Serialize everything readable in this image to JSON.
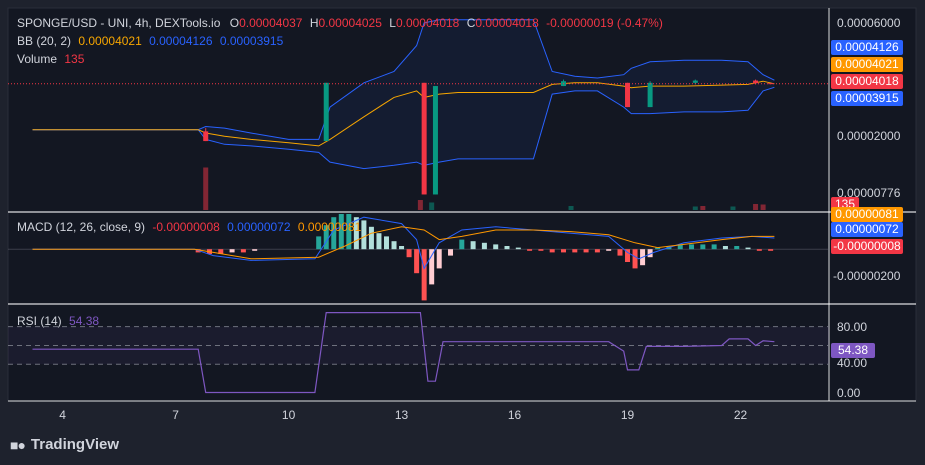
{
  "header": {
    "symbol": "SPONGE/USD - UNI, 4h, DEXTools.io",
    "o_label": "O",
    "o_value": "0.00004037",
    "h_label": "H",
    "h_value": "0.00004025",
    "l_label": "L",
    "l_value": "0.00004018",
    "c_label": "C",
    "c_value": "0.00004018",
    "change": "-0.00000019 (-0.47%)"
  },
  "bb_legend": {
    "label": "BB (20, 2)",
    "basis": "0.00004021",
    "upper": "0.00004126",
    "lower": "0.00003915"
  },
  "volume_legend": {
    "label": "Volume",
    "value": "135"
  },
  "macd_legend": {
    "label": "MACD (12, 26, close, 9)",
    "hist": "-0.00000008",
    "macd": "0.00000072",
    "signal": "0.00000081"
  },
  "rsi_legend": {
    "label": "RSI (14)",
    "value": "54.38"
  },
  "price_axis": {
    "ticks": [
      "0.00006000",
      "0.00002000",
      "0.00000776"
    ],
    "tags": [
      {
        "value": "0.00004126",
        "color": "#2962ff"
      },
      {
        "value": "0.00004021",
        "color": "#ff9800"
      },
      {
        "value": "0.00004018",
        "color": "#f23645"
      },
      {
        "value": "0.00003915",
        "color": "#2962ff"
      }
    ],
    "volume_tag": "135"
  },
  "macd_axis": {
    "ticks": [
      "-0.00000200"
    ],
    "tags": [
      {
        "value": "0.00000081",
        "color": "#ff9800"
      },
      {
        "value": "0.00000072",
        "color": "#2962ff"
      },
      {
        "value": "-0.00000008",
        "color": "#f23645"
      }
    ]
  },
  "rsi_axis": {
    "ticks": [
      "80.00",
      "40.00",
      "0.00"
    ],
    "tag": "54.38"
  },
  "time_axis": {
    "ticks": [
      "4",
      "7",
      "10",
      "13",
      "16",
      "19",
      "22"
    ]
  },
  "footer": {
    "brand": "TradingView"
  },
  "colors": {
    "up": "#089981",
    "down": "#f23645",
    "bb": "#2962ff",
    "basis": "#f7a600",
    "rsi": "#7e57c2",
    "macd": "#2962ff",
    "signal": "#ff9800"
  },
  "chart_data": [
    {
      "type": "candlestick",
      "title": "SPONGE/USD - UNI, 4h, DEXTools.io",
      "x_ticks": [
        "4",
        "7",
        "10",
        "13",
        "16",
        "19",
        "22"
      ],
      "ylim": [
        1.2e-06,
        6.3e-05
      ],
      "candles": [
        {
          "x": 7.8,
          "o": 2.55e-05,
          "h": 2.65e-05,
          "l": 2.25e-05,
          "c": 2.25e-05
        },
        {
          "x": 11.0,
          "o": 2.25e-05,
          "h": 4.05e-05,
          "l": 2.25e-05,
          "c": 4.05e-05
        },
        {
          "x": 13.6,
          "o": 4.05e-05,
          "h": 4.05e-05,
          "l": 6e-06,
          "c": 6e-06
        },
        {
          "x": 13.9,
          "o": 6e-06,
          "h": 3.95e-05,
          "l": 6e-06,
          "c": 3.95e-05
        },
        {
          "x": 17.3,
          "o": 3.95e-05,
          "h": 4.15e-05,
          "l": 3.95e-05,
          "c": 4.1e-05
        },
        {
          "x": 19.0,
          "o": 4.05e-05,
          "h": 4.05e-05,
          "l": 3.3e-05,
          "c": 3.3e-05
        },
        {
          "x": 19.6,
          "o": 3.3e-05,
          "h": 4.1e-05,
          "l": 3.3e-05,
          "c": 4.05e-05
        },
        {
          "x": 20.8,
          "o": 4.05e-05,
          "h": 4.15e-05,
          "l": 4e-05,
          "c": 4.12e-05
        },
        {
          "x": 22.4,
          "o": 4.12e-05,
          "h": 4.15e-05,
          "l": 4e-05,
          "c": 4.04e-05
        },
        {
          "x": 22.8,
          "o": 4.04e-05,
          "h": 4.04e-05,
          "l": 4.02e-05,
          "c": 4.02e-05
        }
      ],
      "bollinger": {
        "name": "BB (20, 2)",
        "x": [
          3.2,
          7.6,
          7.8,
          8.3,
          9.0,
          10.0,
          10.8,
          11.1,
          12.0,
          12.8,
          13.4,
          13.6,
          14.0,
          14.5,
          15.5,
          16.5,
          17.0,
          17.6,
          18.2,
          18.9,
          19.1,
          19.6,
          20.5,
          21.5,
          22.2,
          22.6,
          22.9
        ],
        "upper": [
          2.6e-05,
          2.6e-05,
          2.7e-05,
          2.65e-05,
          2.5e-05,
          2.3e-05,
          2.3e-05,
          3.3e-05,
          4.05e-05,
          4.4e-05,
          5.2e-05,
          5.9e-05,
          6e-05,
          6e-05,
          6e-05,
          6e-05,
          4.4e-05,
          4.25e-05,
          4.2e-05,
          4.3e-05,
          4.5e-05,
          4.7e-05,
          4.75e-05,
          4.75e-05,
          4.7e-05,
          4.3e-05,
          4.13e-05
        ],
        "basis": [
          2.6e-05,
          2.6e-05,
          2.5e-05,
          2.4e-05,
          2.3e-05,
          2.2e-05,
          2.1e-05,
          2.3e-05,
          3e-05,
          3.6e-05,
          3.8e-05,
          3.6e-05,
          3.7e-05,
          3.75e-05,
          3.75e-05,
          3.75e-05,
          4e-05,
          4.05e-05,
          4.05e-05,
          3.95e-05,
          3.9e-05,
          3.95e-05,
          3.95e-05,
          3.98e-05,
          4e-05,
          4.1e-05,
          4.02e-05
        ],
        "lower": [
          2.6e-05,
          2.6e-05,
          2.3e-05,
          2.15e-05,
          2.1e-05,
          2e-05,
          1.9e-05,
          1.6e-05,
          1.4e-05,
          1.5e-05,
          1.6e-05,
          1.5e-05,
          1.6e-05,
          1.7e-05,
          1.7e-05,
          1.7e-05,
          3.7e-05,
          3.8e-05,
          3.8e-05,
          3.3e-05,
          3.1e-05,
          3.1e-05,
          3.15e-05,
          3.15e-05,
          3.2e-05,
          3.8e-05,
          3.91e-05
        ]
      },
      "volume": [
        {
          "x": 7.8,
          "v": 0.85,
          "dir": "down"
        },
        {
          "x": 13.5,
          "v": 0.2,
          "dir": "down"
        },
        {
          "x": 13.8,
          "v": 0.15,
          "dir": "up"
        },
        {
          "x": 17.5,
          "v": 0.08,
          "dir": "up"
        },
        {
          "x": 20.8,
          "v": 0.07,
          "dir": "up"
        },
        {
          "x": 21.0,
          "v": 0.08,
          "dir": "down"
        },
        {
          "x": 21.8,
          "v": 0.07,
          "dir": "up"
        },
        {
          "x": 22.4,
          "v": 0.12,
          "dir": "down"
        },
        {
          "x": 22.6,
          "v": 0.11,
          "dir": "down"
        }
      ]
    },
    {
      "type": "bar",
      "title": "MACD (12, 26, close, 9)",
      "ylim": [
        -3.3e-06,
        2.2e-06
      ],
      "histogram": {
        "x": [
          7.6,
          7.9,
          8.2,
          8.5,
          8.8,
          9.1,
          10.8,
          11.0,
          11.2,
          11.4,
          11.6,
          11.8,
          12.0,
          12.2,
          12.4,
          12.6,
          12.8,
          13.0,
          13.2,
          13.4,
          13.6,
          13.8,
          14.0,
          14.3,
          14.6,
          14.9,
          15.2,
          15.5,
          15.8,
          16.1,
          16.4,
          16.7,
          17.0,
          17.3,
          17.6,
          17.9,
          18.2,
          18.5,
          18.8,
          19.0,
          19.2,
          19.4,
          19.6,
          19.8,
          20.1,
          20.4,
          20.7,
          21.0,
          21.3,
          21.6,
          21.9,
          22.2,
          22.5,
          22.8
        ],
        "values": [
          -2e-07,
          -3e-07,
          -3e-07,
          -2e-07,
          -2e-07,
          -1e-07,
          8e-07,
          1.5e-06,
          2e-06,
          2.2e-06,
          2.2e-06,
          2e-06,
          1.8e-06,
          1.4e-06,
          1e-06,
          8e-07,
          5e-07,
          2e-07,
          -5e-07,
          -1.5e-06,
          -3.2e-06,
          -2.2e-06,
          -1.2e-06,
          -4e-07,
          6e-07,
          5e-07,
          4e-07,
          3e-07,
          2e-07,
          1e-07,
          -1e-07,
          -1e-07,
          -2e-07,
          -2e-07,
          -2e-07,
          -2e-07,
          -2e-07,
          -1e-07,
          -4e-07,
          -8e-07,
          -1.2e-06,
          -1e-06,
          -5e-07,
          1e-07,
          2e-07,
          3e-07,
          3e-07,
          3e-07,
          3e-07,
          2e-07,
          2e-07,
          1e-07,
          -1e-07,
          -1e-07
        ]
      },
      "macd_line": {
        "x": [
          3.2,
          7.5,
          8.0,
          9.0,
          10.7,
          11.2,
          12.0,
          13.0,
          13.4,
          13.6,
          14.0,
          14.6,
          15.5,
          16.5,
          17.5,
          18.5,
          19.0,
          19.3,
          19.7,
          20.5,
          21.5,
          22.3,
          22.9
        ],
        "values": [
          0.0,
          0.0,
          -4e-07,
          -7e-07,
          -6e-07,
          1.2e-06,
          2e-06,
          1.6e-06,
          6e-07,
          -1.2e-06,
          4e-07,
          1.2e-06,
          1.4e-06,
          1.2e-06,
          1e-06,
          8e-07,
          -2e-07,
          -6e-07,
          -2e-07,
          4e-07,
          7e-07,
          8e-07,
          7e-07
        ]
      },
      "signal_line": {
        "x": [
          3.2,
          7.5,
          8.0,
          9.0,
          10.8,
          11.5,
          12.2,
          13.0,
          13.6,
          14.0,
          14.6,
          15.5,
          16.5,
          17.5,
          18.5,
          19.2,
          19.8,
          20.5,
          21.5,
          22.3,
          22.9
        ],
        "values": [
          0.0,
          0.0,
          -2e-07,
          -6e-07,
          -5e-07,
          2e-07,
          1e-06,
          1.4e-06,
          1.2e-06,
          6e-07,
          8e-07,
          1.2e-06,
          1.2e-06,
          1.1e-06,
          9e-07,
          4e-07,
          1e-07,
          3e-07,
          6e-07,
          8e-07,
          8e-07
        ]
      }
    },
    {
      "type": "line",
      "title": "RSI (14)",
      "ylim": [
        -8,
        92
      ],
      "bands": [
        70,
        50,
        30
      ],
      "x": [
        3.2,
        7.6,
        7.8,
        10.7,
        11.0,
        13.5,
        13.7,
        13.9,
        14.1,
        16.5,
        18.5,
        18.9,
        19.0,
        19.3,
        19.5,
        20.5,
        21.5,
        21.7,
        22.2,
        22.4,
        22.6,
        22.9
      ],
      "values": [
        46,
        46,
        0,
        0,
        85,
        85,
        12,
        12,
        54,
        54,
        54,
        44,
        24,
        24,
        49,
        49,
        50,
        57,
        57,
        50,
        55,
        54
      ]
    }
  ]
}
